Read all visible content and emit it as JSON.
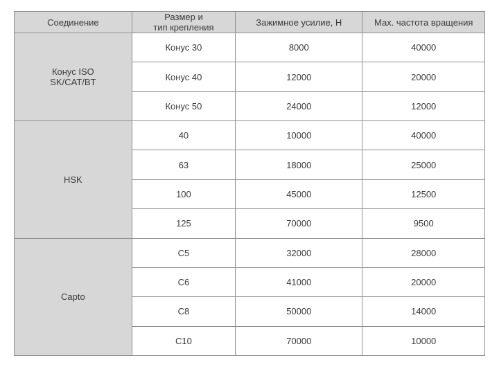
{
  "table": {
    "border_color": "#8d8d8d",
    "header_bg": "#d7d7d7",
    "rowlabel_bg": "#d7d7d7",
    "cell_bg": "#ffffff",
    "text_color": "#3a3a3a",
    "header_fontsize": 13,
    "cell_fontsize": 13,
    "columns": [
      "Соединение",
      "Размер и\nтип крепления",
      "Зажимное усилие, Н",
      "Мах. частота вращения"
    ],
    "groups": [
      {
        "label": "Конус ISO\nSK/CAT/BT",
        "rows": [
          {
            "size": "Конус 30",
            "force": "8000",
            "rpm": "40000"
          },
          {
            "size": "Конус 40",
            "force": "12000",
            "rpm": "20000"
          },
          {
            "size": "Конус 50",
            "force": "24000",
            "rpm": "12000"
          }
        ]
      },
      {
        "label": "HSK",
        "rows": [
          {
            "size": "40",
            "force": "10000",
            "rpm": "40000"
          },
          {
            "size": "63",
            "force": "18000",
            "rpm": "25000"
          },
          {
            "size": "100",
            "force": "45000",
            "rpm": "12500"
          },
          {
            "size": "125",
            "force": "70000",
            "rpm": "9500"
          }
        ]
      },
      {
        "label": "Capto",
        "rows": [
          {
            "size": "C5",
            "force": "32000",
            "rpm": "28000"
          },
          {
            "size": "C6",
            "force": "41000",
            "rpm": "20000"
          },
          {
            "size": "C8",
            "force": "50000",
            "rpm": "14000"
          },
          {
            "size": "C10",
            "force": "70000",
            "rpm": "10000"
          }
        ]
      }
    ]
  }
}
